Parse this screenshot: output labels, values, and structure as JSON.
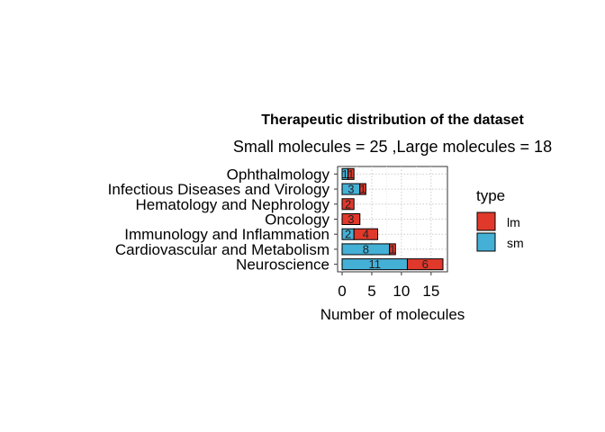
{
  "chart_data": {
    "type": "bar",
    "orientation": "horizontal",
    "stacked": true,
    "title": "Therapeutic distribution of the dataset",
    "subtitle": "Small molecules = 25 ,Large molecules = 18",
    "xlabel": "Number of molecules",
    "ylabel": "",
    "xlim": [
      0,
      17
    ],
    "xticks": [
      0,
      5,
      10,
      15
    ],
    "grid": true,
    "categories": [
      "Ophthalmology",
      "Infectious Diseases and Virology",
      "Hematology and Nephrology",
      "Oncology",
      "Immunology and Inflammation",
      "Cardiovascular and Metabolism",
      "Neuroscience"
    ],
    "series": [
      {
        "name": "sm",
        "color": "#45B0D6",
        "values": [
          1,
          3,
          0,
          0,
          2,
          8,
          11
        ]
      },
      {
        "name": "lm",
        "color": "#E0392B",
        "values": [
          1,
          1,
          2,
          3,
          4,
          1,
          6
        ]
      }
    ],
    "legend": {
      "title": "type",
      "position": "right",
      "order": [
        "lm",
        "sm"
      ]
    }
  }
}
